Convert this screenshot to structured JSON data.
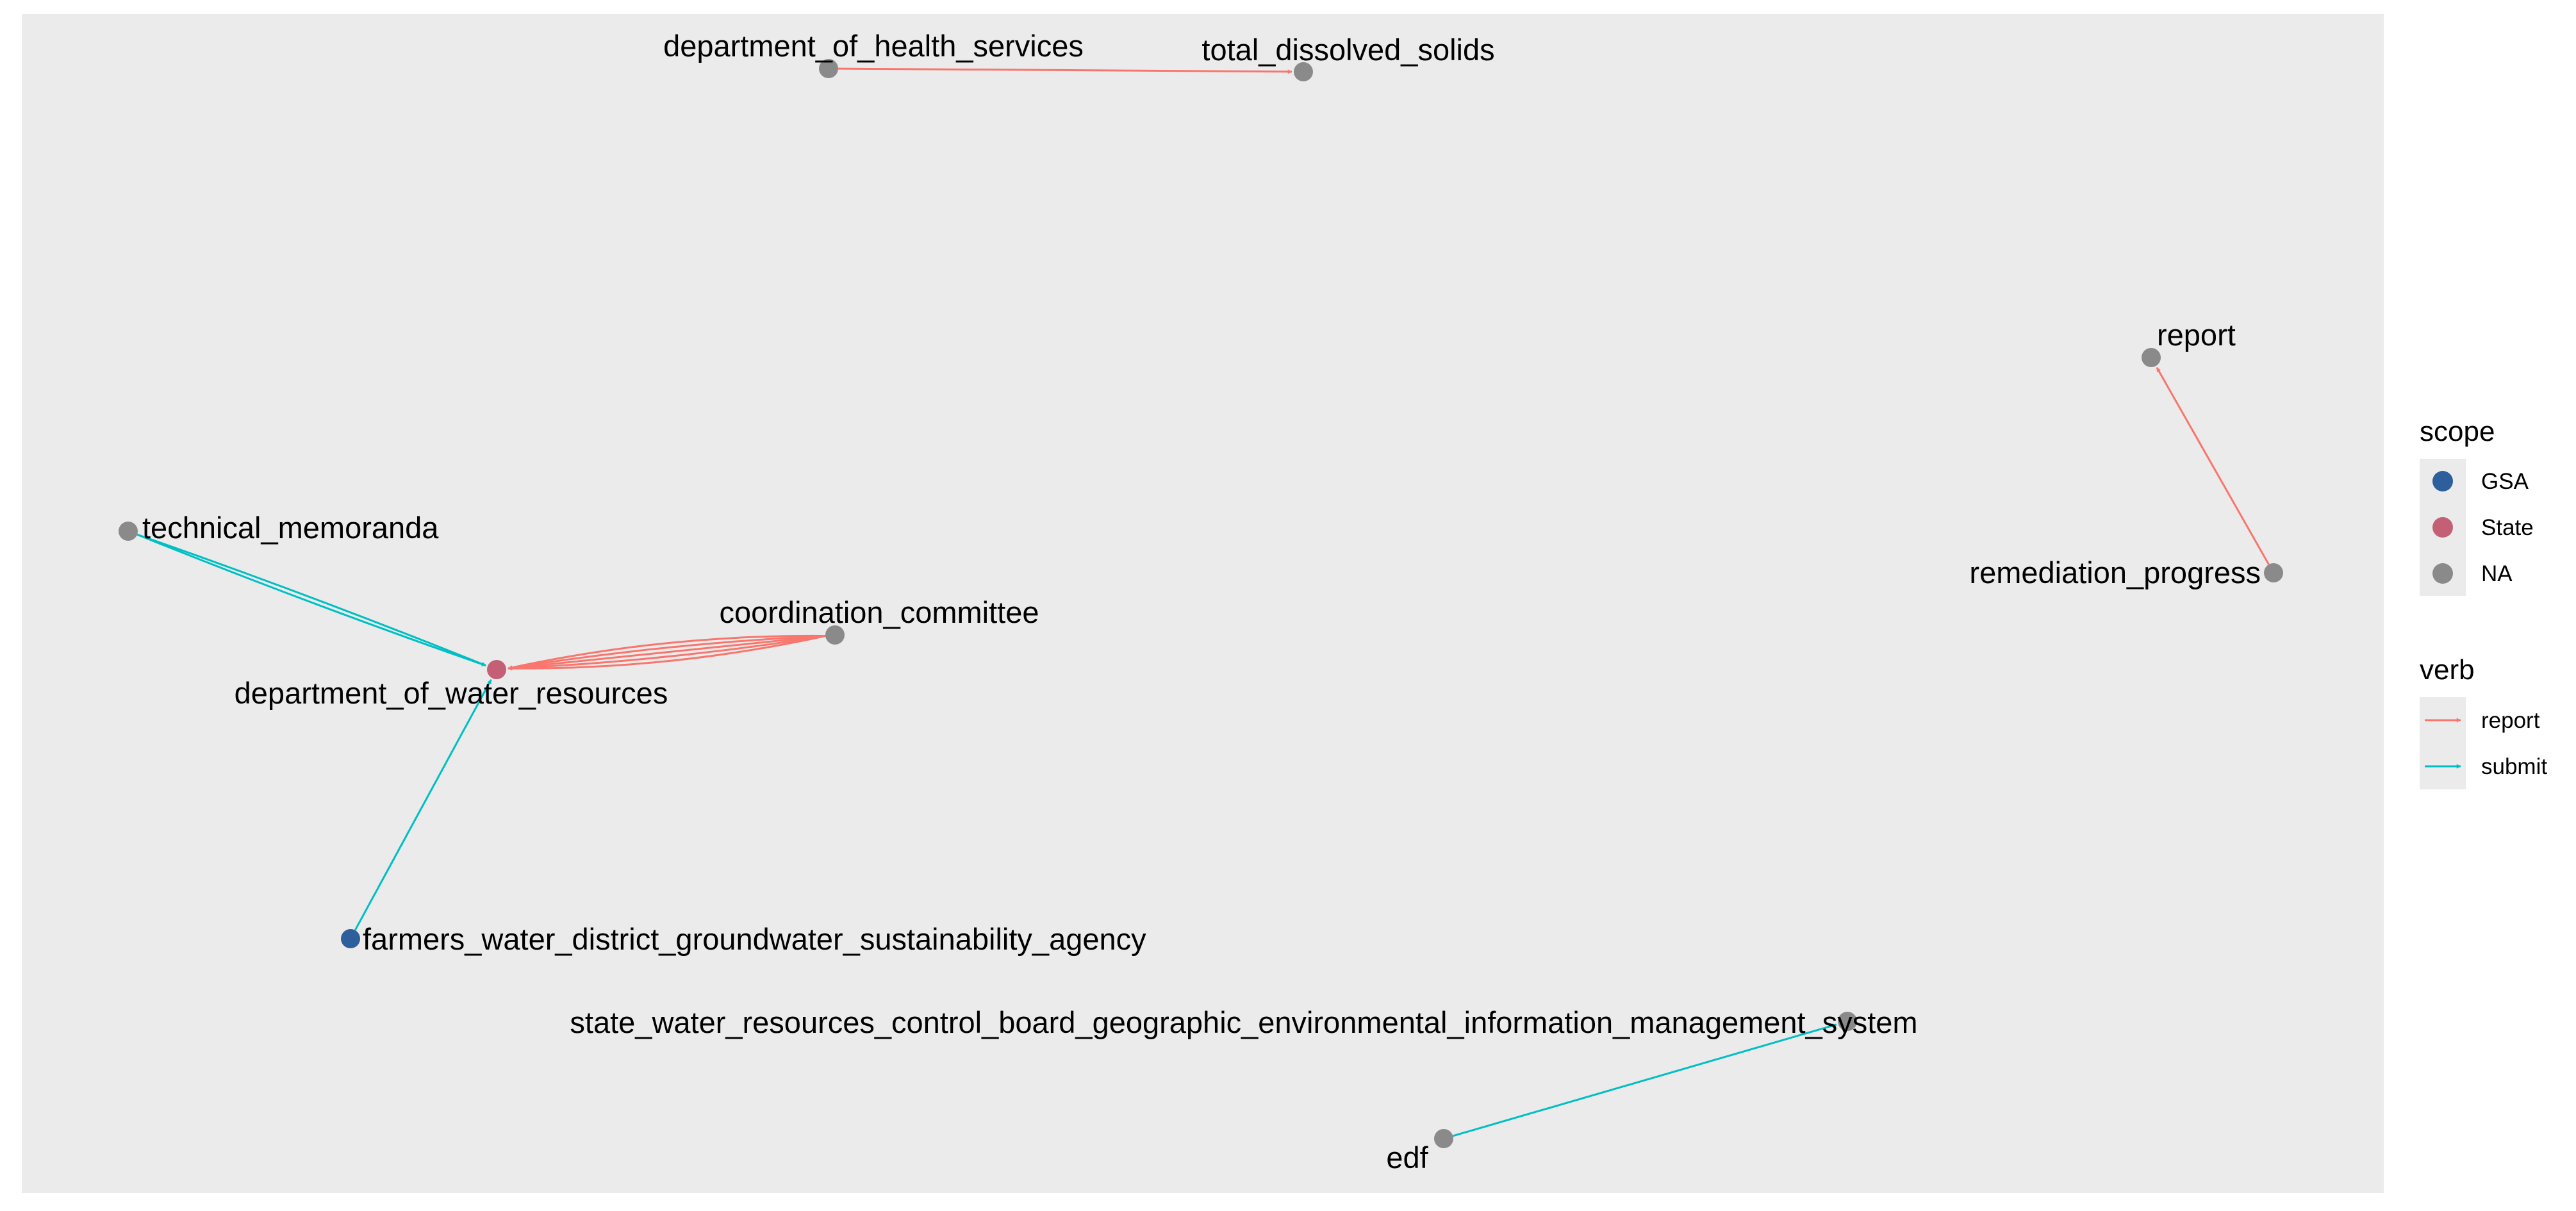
{
  "graph": {
    "nodes": [
      {
        "id": "department_of_health_services",
        "label": "department_of_health_services",
        "scope": "NA"
      },
      {
        "id": "total_dissolved_solids",
        "label": "total_dissolved_solids",
        "scope": "NA"
      },
      {
        "id": "report",
        "label": "report",
        "scope": "NA"
      },
      {
        "id": "remediation_progress",
        "label": "remediation_progress",
        "scope": "NA"
      },
      {
        "id": "technical_memoranda",
        "label": "technical_memoranda",
        "scope": "NA"
      },
      {
        "id": "coordination_committee",
        "label": "coordination_committee",
        "scope": "NA"
      },
      {
        "id": "department_of_water_resources",
        "label": "department_of_water_resources",
        "scope": "State"
      },
      {
        "id": "farmers_water_district_groundwater_sustainability_agency",
        "label": "farmers_water_district_groundwater_sustainability_agency",
        "scope": "GSA"
      },
      {
        "id": "state_water_resources_control_board_geographic_environmental_information_management_system",
        "label": "state_water_resources_control_board_geographic_environmental_information_management_system",
        "scope": "NA"
      },
      {
        "id": "edf",
        "label": "edf",
        "scope": "NA"
      }
    ],
    "edges": [
      {
        "from": "department_of_health_services",
        "to": "total_dissolved_solids",
        "verb": "report"
      },
      {
        "from": "remediation_progress",
        "to": "report",
        "verb": "report"
      },
      {
        "from": "technical_memoranda",
        "to": "department_of_water_resources",
        "verb": "submit"
      },
      {
        "from": "technical_memoranda",
        "to": "department_of_water_resources",
        "verb": "submit"
      },
      {
        "from": "coordination_committee",
        "to": "department_of_water_resources",
        "verb": "report"
      },
      {
        "from": "coordination_committee",
        "to": "department_of_water_resources",
        "verb": "report"
      },
      {
        "from": "coordination_committee",
        "to": "department_of_water_resources",
        "verb": "report"
      },
      {
        "from": "coordination_committee",
        "to": "department_of_water_resources",
        "verb": "report"
      },
      {
        "from": "coordination_committee",
        "to": "department_of_water_resources",
        "verb": "report"
      },
      {
        "from": "farmers_water_district_groundwater_sustainability_agency",
        "to": "department_of_water_resources",
        "verb": "submit"
      },
      {
        "from": "edf",
        "to": "state_water_resources_control_board_geographic_environmental_information_management_system",
        "verb": "submit"
      }
    ]
  },
  "legend": {
    "scope": {
      "title": "scope",
      "items": [
        {
          "label": "GSA",
          "color": "#2c5f9b"
        },
        {
          "label": "State",
          "color": "#c46075"
        },
        {
          "label": "NA",
          "color": "#8a8a8a"
        }
      ]
    },
    "verb": {
      "title": "verb",
      "items": [
        {
          "label": "report",
          "color": "#f8766d"
        },
        {
          "label": "submit",
          "color": "#00bfc4"
        }
      ]
    }
  },
  "colors": {
    "panel_background": "#ebebeb",
    "legend_key_background": "#ebebeb"
  }
}
